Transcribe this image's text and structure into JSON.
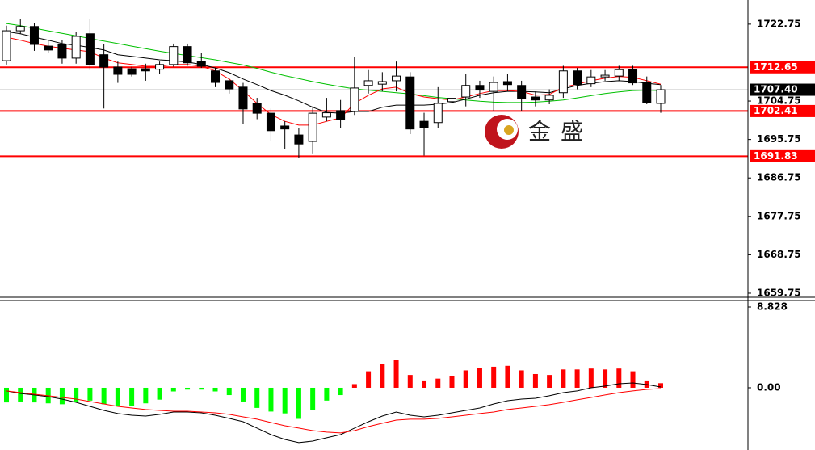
{
  "chart_data": [
    {
      "type": "candlestick",
      "watermark": "金盛",
      "ylim": [
        1658.8,
        1728.4
      ],
      "yticks": [
        1722.75,
        1704.75,
        1695.75,
        1686.75,
        1677.75,
        1668.75,
        1659.75
      ],
      "levels": [
        1712.65,
        1702.41,
        1691.83
      ],
      "level_color": "#ff0000",
      "last_price": {
        "value": 1707.4,
        "label": "1707.40"
      },
      "up_color": "#ffffff",
      "down_color": "#000000",
      "open": [
        1714.2,
        1721.2,
        1722.2,
        1717.6,
        1718,
        1714.8,
        1720.5,
        1715.6,
        1712.7,
        1712.3,
        1712.3,
        1712.2,
        1713.3,
        1717.5,
        1714,
        1711.8,
        1709.5,
        1708,
        1704.2,
        1701.9,
        1698.9,
        1696.8,
        1695.3,
        1701,
        1702.5,
        1702.3,
        1708.4,
        1708.7,
        1709.5,
        1710.4,
        1700,
        1699.7,
        1704.6,
        1705.7,
        1708.4,
        1707,
        1709.3,
        1708.4,
        1705.7,
        1705,
        1706.7,
        1711.8,
        1708.8,
        1710.4,
        1710.6,
        1712.1,
        1709.2,
        1704.2
      ],
      "high": [
        1722.4,
        1724,
        1723,
        1719,
        1719,
        1721,
        1724,
        1718,
        1714,
        1712.8,
        1713.5,
        1714,
        1718.2,
        1718.2,
        1716,
        1712.5,
        1710,
        1709,
        1705.5,
        1703,
        1700,
        1698.5,
        1703.5,
        1705.5,
        1705,
        1715,
        1712,
        1711.5,
        1714,
        1711.5,
        1702,
        1708,
        1707.5,
        1711,
        1709.5,
        1710.5,
        1711,
        1709.5,
        1707,
        1707.5,
        1713,
        1712.5,
        1712,
        1712,
        1713,
        1713,
        1710.5,
        1708.5
      ],
      "low": [
        1713.3,
        1720.5,
        1716.5,
        1716,
        1713.5,
        1713.5,
        1712,
        1703,
        1709,
        1710.5,
        1709.5,
        1711,
        1712.8,
        1713,
        1712.5,
        1708,
        1706.5,
        1699.3,
        1700.5,
        1695.5,
        1693.5,
        1691.5,
        1692.5,
        1700,
        1698.5,
        1701.5,
        1706.5,
        1707,
        1707,
        1697,
        1692,
        1698.5,
        1702,
        1703.5,
        1705.5,
        1702.5,
        1707,
        1702.5,
        1703.5,
        1704,
        1705.5,
        1707.5,
        1708,
        1709.5,
        1709.5,
        1708.5,
        1704,
        1702
      ],
      "close": [
        1721.2,
        1722.2,
        1718,
        1716.7,
        1714.8,
        1719.9,
        1713.3,
        1712.7,
        1711,
        1711,
        1711.8,
        1713.3,
        1717.5,
        1713.7,
        1712.9,
        1709.1,
        1707.6,
        1702.9,
        1701.9,
        1697.8,
        1698.2,
        1694.7,
        1701.9,
        1702,
        1700.4,
        1707.8,
        1709.5,
        1709.3,
        1710.6,
        1698.2,
        1698.6,
        1704.2,
        1705.4,
        1708.4,
        1707.3,
        1709.1,
        1708.6,
        1705.3,
        1705,
        1706.1,
        1711.8,
        1708.6,
        1710.4,
        1710.8,
        1712.1,
        1709,
        1704.4,
        1707.4
      ],
      "series": [
        {
          "color": "#00c000",
          "values": [
            1722.9,
            1722.4,
            1721.8,
            1721.2,
            1720.6,
            1720,
            1719.4,
            1718.8,
            1718.2,
            1717.6,
            1717,
            1716.4,
            1715.9,
            1715.4,
            1714.9,
            1714.4,
            1713.8,
            1713.2,
            1712.4,
            1711.5,
            1710.7,
            1710,
            1709.3,
            1708.7,
            1708.1,
            1707.6,
            1707.3,
            1707,
            1706.7,
            1706.4,
            1706,
            1705.6,
            1705.3,
            1705,
            1704.7,
            1704.5,
            1704.4,
            1704.4,
            1704.5,
            1704.7,
            1705,
            1705.5,
            1706,
            1706.5,
            1706.9,
            1707.2,
            1707.3,
            1707.2
          ]
        },
        {
          "color": "#000000",
          "values": [
            1721.0,
            1720.5,
            1719.7,
            1719.0,
            1718.2,
            1717.8,
            1717.3,
            1716.7,
            1715.6,
            1715.2,
            1714.8,
            1714.4,
            1714.2,
            1713.9,
            1713.3,
            1712.5,
            1711.4,
            1709.9,
            1708.6,
            1707.2,
            1706.1,
            1704.8,
            1703.3,
            1702.1,
            1701.9,
            1702.3,
            1702.3,
            1703.3,
            1703.8,
            1703.8,
            1703.8,
            1704.0,
            1704.4,
            1705.2,
            1706.1,
            1706.7,
            1707.0,
            1707.0,
            1706.9,
            1706.7,
            1707.6,
            1708.4,
            1708.9,
            1709.3,
            1709.5,
            1709.3,
            1708.9,
            1708.6
          ]
        },
        {
          "color": "#ff0000",
          "values": [
            1719.7,
            1719.0,
            1718.2,
            1717.6,
            1717.1,
            1716.7,
            1716.3,
            1714.8,
            1713.7,
            1713.3,
            1712.9,
            1712.9,
            1713.3,
            1713.3,
            1712.9,
            1711.8,
            1709.9,
            1707.2,
            1704.2,
            1701.6,
            1700.0,
            1699.1,
            1699.1,
            1700.0,
            1700.8,
            1704.2,
            1706.1,
            1707.6,
            1708.0,
            1706.5,
            1705.7,
            1705.3,
            1705.0,
            1705.7,
            1706.5,
            1707.2,
            1707.2,
            1707.0,
            1706.1,
            1706.3,
            1708.0,
            1708.7,
            1709.5,
            1710.1,
            1710.5,
            1710.3,
            1709.5,
            1708.7
          ]
        }
      ]
    },
    {
      "type": "macd",
      "ylim": [
        -6.8,
        9.71
      ],
      "yticks": [
        8.828,
        {
          "value": 0,
          "label": "0.00"
        }
      ],
      "up_color": "#ff0000",
      "down_color": "#00ff00",
      "values": [
        -1.6,
        -1.5,
        -1.6,
        -1.7,
        -1.8,
        -1.5,
        -1.4,
        -1.8,
        -2.0,
        -2.0,
        -1.7,
        -1.3,
        -0.4,
        -0.2,
        -0.2,
        -0.4,
        -0.8,
        -1.5,
        -2.2,
        -2.6,
        -2.8,
        -3.4,
        -2.4,
        -1.4,
        -0.8,
        0.4,
        1.8,
        2.6,
        3.0,
        1.4,
        0.8,
        1.0,
        1.3,
        1.9,
        2.2,
        2.3,
        2.4,
        1.9,
        1.5,
        1.4,
        2.0,
        2.0,
        2.1,
        2.0,
        2.1,
        1.8,
        0.8,
        0.5
      ],
      "series": [
        {
          "color": "#000000",
          "values": [
            -0.35,
            -0.62,
            -0.79,
            -0.97,
            -1.24,
            -1.59,
            -2.03,
            -2.47,
            -2.82,
            -3.0,
            -3.09,
            -2.91,
            -2.65,
            -2.65,
            -2.74,
            -3.0,
            -3.35,
            -3.71,
            -4.41,
            -5.12,
            -5.65,
            -6.0,
            -5.83,
            -5.47,
            -5.12,
            -4.41,
            -3.71,
            -3.09,
            -2.65,
            -3.0,
            -3.18,
            -3.0,
            -2.74,
            -2.47,
            -2.21,
            -1.77,
            -1.41,
            -1.24,
            -1.15,
            -0.88,
            -0.53,
            -0.35,
            0.0,
            0.18,
            0.44,
            0.53,
            0.35,
            0.09
          ]
        },
        {
          "color": "#ff0000",
          "values": [
            -0.35,
            -0.53,
            -0.71,
            -0.88,
            -1.06,
            -1.24,
            -1.5,
            -1.77,
            -2.03,
            -2.21,
            -2.38,
            -2.47,
            -2.56,
            -2.56,
            -2.65,
            -2.74,
            -2.91,
            -3.18,
            -3.44,
            -3.8,
            -4.15,
            -4.41,
            -4.68,
            -4.85,
            -4.94,
            -4.68,
            -4.24,
            -3.88,
            -3.53,
            -3.44,
            -3.44,
            -3.35,
            -3.18,
            -3.0,
            -2.82,
            -2.65,
            -2.38,
            -2.21,
            -2.03,
            -1.85,
            -1.59,
            -1.32,
            -1.06,
            -0.79,
            -0.53,
            -0.35,
            -0.18,
            -0.09
          ]
        }
      ]
    }
  ]
}
